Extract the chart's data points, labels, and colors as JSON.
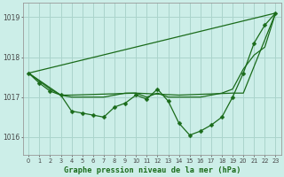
{
  "background_color": "#cceee8",
  "line_color": "#1a6b1a",
  "grid_color": "#aad4cc",
  "title": "Graphe pression niveau de la mer (hPa)",
  "xlim": [
    -0.5,
    23.5
  ],
  "ylim": [
    1015.55,
    1019.35
  ],
  "yticks": [
    1016,
    1017,
    1018,
    1019
  ],
  "xticks": [
    0,
    1,
    2,
    3,
    4,
    5,
    6,
    7,
    8,
    9,
    10,
    11,
    12,
    13,
    14,
    15,
    16,
    17,
    18,
    19,
    20,
    21,
    22,
    23
  ],
  "line_straight": {
    "x": [
      0,
      23
    ],
    "y": [
      1017.6,
      1019.1
    ]
  },
  "line_flat": {
    "x": [
      0,
      3,
      4,
      10,
      14,
      19,
      20,
      23
    ],
    "y": [
      1017.6,
      1017.05,
      1017.05,
      1017.1,
      1017.05,
      1017.1,
      1017.1,
      1019.1
    ]
  },
  "line_curve1": {
    "x": [
      0,
      1,
      2,
      3,
      4,
      5,
      6,
      7,
      8,
      9,
      10,
      11,
      12,
      13,
      14,
      15,
      16,
      17,
      18,
      19,
      20,
      21,
      22,
      23
    ],
    "y": [
      1017.6,
      1017.4,
      1017.2,
      1017.05,
      1017.0,
      1017.0,
      1017.0,
      1017.0,
      1017.05,
      1017.1,
      1017.1,
      1017.0,
      1017.1,
      1017.0,
      1017.0,
      1017.0,
      1017.0,
      1017.05,
      1017.1,
      1017.2,
      1017.7,
      1018.05,
      1018.25,
      1019.1
    ]
  },
  "line_markers": {
    "x": [
      0,
      1,
      2,
      3,
      4,
      5,
      6,
      7,
      8,
      9,
      10,
      11,
      12,
      13,
      14,
      15,
      16,
      17,
      18,
      19,
      20,
      21,
      22,
      23
    ],
    "y": [
      1017.6,
      1017.35,
      1017.15,
      1017.05,
      1016.65,
      1016.6,
      1016.55,
      1016.5,
      1016.75,
      1016.85,
      1017.05,
      1016.95,
      1017.2,
      1016.9,
      1016.35,
      1016.05,
      1016.15,
      1016.3,
      1016.5,
      1017.0,
      1017.6,
      1018.35,
      1018.8,
      1019.1
    ]
  }
}
